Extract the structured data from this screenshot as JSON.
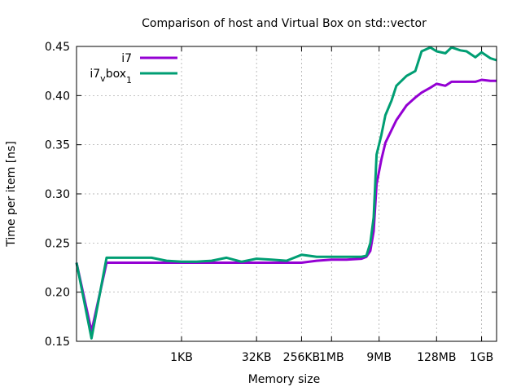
{
  "chart_data": {
    "type": "line",
    "title": "Comparison of host and Virtual Box on std::vector",
    "xlabel": "Memory size",
    "ylabel": "Time per item [ns]",
    "x_scale": "log2",
    "xlim_bytes": [
      8,
      2147483648
    ],
    "ylim": [
      0.15,
      0.45
    ],
    "y_ticks": [
      0.15,
      0.2,
      0.25,
      0.3,
      0.35,
      0.4,
      0.45
    ],
    "x_ticks": [
      {
        "label": "1KB",
        "bytes": 1024
      },
      {
        "label": "32KB",
        "bytes": 32768
      },
      {
        "label": "256KB",
        "bytes": 262144
      },
      {
        "label": "1MB",
        "bytes": 1048576
      },
      {
        "label": "9MB",
        "bytes": 9437184
      },
      {
        "label": "128MB",
        "bytes": 134217728
      },
      {
        "label": "1GB",
        "bytes": 1073741824
      }
    ],
    "grid": true,
    "legend_position": "top-left",
    "x_bytes": [
      8,
      16,
      32,
      64,
      128,
      256,
      512,
      1024,
      2048,
      4096,
      8192,
      16384,
      32768,
      65536,
      131072,
      262144,
      524288,
      1048576,
      2097152,
      4194304,
      5242880,
      6291456,
      7340032,
      8388608,
      10485760,
      12582912,
      16777216,
      20971520,
      33554432,
      50331648,
      67108864,
      100663296,
      134217728,
      201326592,
      268435456,
      402653184,
      536870912,
      805306368,
      1073741824,
      1610612736,
      2147483648
    ],
    "series": [
      {
        "name": "i7",
        "color": "#9400d3",
        "values": [
          0.23,
          0.16,
          0.23,
          0.23,
          0.23,
          0.23,
          0.23,
          0.23,
          0.23,
          0.23,
          0.23,
          0.23,
          0.23,
          0.23,
          0.23,
          0.23,
          0.232,
          0.233,
          0.233,
          0.234,
          0.236,
          0.242,
          0.262,
          0.31,
          0.335,
          0.352,
          0.365,
          0.375,
          0.39,
          0.398,
          0.403,
          0.408,
          0.412,
          0.41,
          0.414,
          0.414,
          0.414,
          0.414,
          0.416,
          0.415,
          0.415
        ]
      },
      {
        "name": "i7_vbox_1",
        "color": "#009e73",
        "values": [
          0.23,
          0.153,
          0.235,
          0.235,
          0.235,
          0.235,
          0.232,
          0.231,
          0.231,
          0.232,
          0.235,
          0.231,
          0.234,
          0.233,
          0.232,
          0.238,
          0.236,
          0.236,
          0.236,
          0.236,
          0.237,
          0.25,
          0.276,
          0.34,
          0.36,
          0.38,
          0.395,
          0.41,
          0.42,
          0.425,
          0.445,
          0.449,
          0.445,
          0.443,
          0.449,
          0.446,
          0.445,
          0.439,
          0.444,
          0.438,
          0.436
        ]
      }
    ]
  },
  "legend": {
    "i7": "i7",
    "vbox_main": "i7",
    "vbox_sub1": "v",
    "vbox_mid": "box",
    "vbox_sub2": "1"
  }
}
